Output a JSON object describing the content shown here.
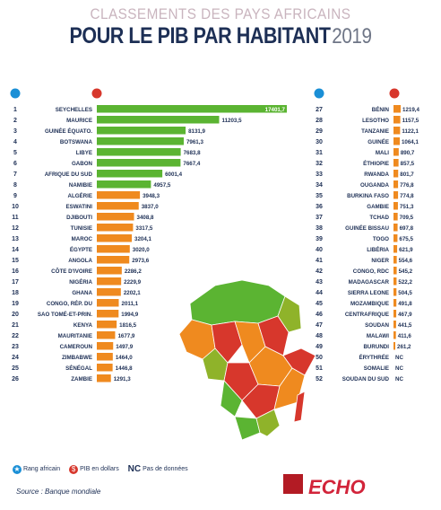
{
  "header": {
    "subtitle": "CLASSEMENTS DES PAYS AFRICAINS",
    "title": "POUR LE PIB PAR HABITANT",
    "year": "2019"
  },
  "chart_data": {
    "type": "bar",
    "title": "POUR LE PIB PAR HABITANT",
    "left_column": [
      {
        "rank": "1",
        "country": "SEYCHELLES",
        "value": 17401.7,
        "label": "17401,7"
      },
      {
        "rank": "2",
        "country": "MAURICE",
        "value": 11203.5,
        "label": "11203,5"
      },
      {
        "rank": "3",
        "country": "GUINÉE ÉQUATO.",
        "value": 8131.9,
        "label": "8131,9"
      },
      {
        "rank": "4",
        "country": "BOTSWANA",
        "value": 7961.3,
        "label": "7961,3"
      },
      {
        "rank": "5",
        "country": "LIBYE",
        "value": 7683.8,
        "label": "7683,8"
      },
      {
        "rank": "6",
        "country": "GABON",
        "value": 7667.4,
        "label": "7667,4"
      },
      {
        "rank": "7",
        "country": "AFRIQUE DU SUD",
        "value": 6001.4,
        "label": "6001,4"
      },
      {
        "rank": "8",
        "country": "NAMIBIE",
        "value": 4957.5,
        "label": "4957,5"
      },
      {
        "rank": "9",
        "country": "ALGÉRIE",
        "value": 3948.3,
        "label": "3948,3"
      },
      {
        "rank": "10",
        "country": "ESWATINI",
        "value": 3837.0,
        "label": "3837,0"
      },
      {
        "rank": "11",
        "country": "DJIBOUTI",
        "value": 3408.8,
        "label": "3408,8"
      },
      {
        "rank": "12",
        "country": "TUNISIE",
        "value": 3317.5,
        "label": "3317,5"
      },
      {
        "rank": "13",
        "country": "MAROC",
        "value": 3204.1,
        "label": "3204,1"
      },
      {
        "rank": "14",
        "country": "ÉGYPTE",
        "value": 3020.0,
        "label": "3020,0"
      },
      {
        "rank": "15",
        "country": "ANGOLA",
        "value": 2973.6,
        "label": "2973,6"
      },
      {
        "rank": "16",
        "country": "CÔTE D'IVOIRE",
        "value": 2286.2,
        "label": "2286,2"
      },
      {
        "rank": "17",
        "country": "NIGÉRIA",
        "value": 2229.9,
        "label": "2229,9"
      },
      {
        "rank": "18",
        "country": "GHANA",
        "value": 2202.1,
        "label": "2202,1"
      },
      {
        "rank": "19",
        "country": "CONGO, RÉP. DU",
        "value": 2011.1,
        "label": "2011,1"
      },
      {
        "rank": "20",
        "country": "SAO TOMÉ-ET-PRIN.",
        "value": 1994.9,
        "label": "1994,9"
      },
      {
        "rank": "21",
        "country": "KENYA",
        "value": 1816.5,
        "label": "1816,5"
      },
      {
        "rank": "22",
        "country": "MAURITANIE",
        "value": 1677.9,
        "label": "1677,9"
      },
      {
        "rank": "23",
        "country": "CAMEROUN",
        "value": 1497.9,
        "label": "1497,9"
      },
      {
        "rank": "24",
        "country": "ZIMBABWE",
        "value": 1464.0,
        "label": "1464,0"
      },
      {
        "rank": "25",
        "country": "SÉNÉGAL",
        "value": 1446.8,
        "label": "1446,8"
      },
      {
        "rank": "26",
        "country": "ZAMBIE",
        "value": 1291.3,
        "label": "1291,3"
      }
    ],
    "right_column": [
      {
        "rank": "27",
        "country": "BÉNIN",
        "value": 1219.4,
        "label": "1219,4"
      },
      {
        "rank": "28",
        "country": "LESOTHO",
        "value": 1157.5,
        "label": "1157,5"
      },
      {
        "rank": "29",
        "country": "TANZANIE",
        "value": 1122.1,
        "label": "1122,1"
      },
      {
        "rank": "30",
        "country": "GUINÉE",
        "value": 1064.1,
        "label": "1064,1"
      },
      {
        "rank": "31",
        "country": "MALI",
        "value": 890.7,
        "label": "890,7"
      },
      {
        "rank": "32",
        "country": "ÉTHIOPIE",
        "value": 857.5,
        "label": "857,5"
      },
      {
        "rank": "33",
        "country": "RWANDA",
        "value": 801.7,
        "label": "801,7"
      },
      {
        "rank": "34",
        "country": "OUGANDA",
        "value": 776.8,
        "label": "776,8"
      },
      {
        "rank": "35",
        "country": "BURKINA FASO",
        "value": 774.8,
        "label": "774,8"
      },
      {
        "rank": "36",
        "country": "GAMBIE",
        "value": 751.3,
        "label": "751,3"
      },
      {
        "rank": "37",
        "country": "TCHAD",
        "value": 709.5,
        "label": "709,5"
      },
      {
        "rank": "38",
        "country": "GUINÉE BISSAU",
        "value": 697.8,
        "label": "697,8"
      },
      {
        "rank": "39",
        "country": "TOGO",
        "value": 675.5,
        "label": "675,5"
      },
      {
        "rank": "40",
        "country": "LIBÉRIA",
        "value": 621.9,
        "label": "621,9"
      },
      {
        "rank": "41",
        "country": "NIGER",
        "value": 554.6,
        "label": "554,6"
      },
      {
        "rank": "42",
        "country": "CONGO, RDC",
        "value": 545.2,
        "label": "545,2"
      },
      {
        "rank": "43",
        "country": "MADAGASCAR",
        "value": 522.2,
        "label": "522,2"
      },
      {
        "rank": "44",
        "country": "SIERRA LEONE",
        "value": 504.5,
        "label": "504,5"
      },
      {
        "rank": "45",
        "country": "MOZAMBIQUE",
        "value": 491.8,
        "label": "491,8"
      },
      {
        "rank": "46",
        "country": "CENTRAFRIQUE",
        "value": 467.9,
        "label": "467,9"
      },
      {
        "rank": "47",
        "country": "SOUDAN",
        "value": 441.5,
        "label": "441,5"
      },
      {
        "rank": "48",
        "country": "MALAWI",
        "value": 411.6,
        "label": "411,6"
      },
      {
        "rank": "49",
        "country": "BURUNDI",
        "value": 261.2,
        "label": "261,2"
      },
      {
        "rank": "50",
        "country": "ÉRYTHRÉE",
        "value": null,
        "label": "NC"
      },
      {
        "rank": "51",
        "country": "SOMALIE",
        "value": null,
        "label": "NC"
      },
      {
        "rank": "52",
        "country": "SOUDAN DU SUD",
        "value": null,
        "label": "NC"
      }
    ],
    "colors": {
      "green": "#5bb432",
      "orange": "#ef8a1f",
      "red": "#d7372c",
      "navy": "#1d2f55",
      "blue_icon": "#1a8fd6"
    }
  },
  "legend": {
    "rank": "Rang africain",
    "pib": "PIB en dollars",
    "nc_symbol": "NC",
    "nc": "Pas de données"
  },
  "source": "Source : Banque mondiale",
  "brand": "ECHO"
}
